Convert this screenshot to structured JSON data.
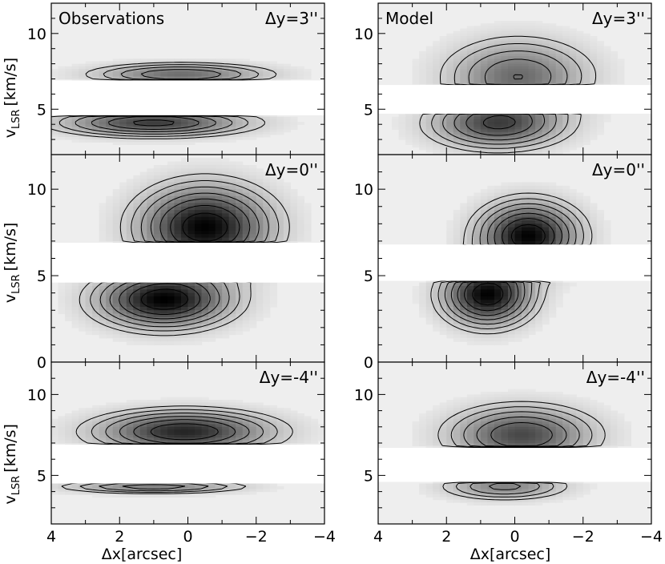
{
  "figure": {
    "xlabel": "Δx[arcsec]",
    "ylabel": "vLSR [km/s]",
    "ylabel_main": "v",
    "ylabel_sub": "LSR",
    "ylabel_unit": "[km/s]"
  },
  "chart_data": [
    {
      "type": "heatmap",
      "column": "Observations",
      "title": "Observations",
      "label": "Δy=3''",
      "xlim": [
        4,
        -4
      ],
      "ylim": [
        2,
        12
      ],
      "xticks": [
        4,
        2,
        0,
        -2,
        -4
      ],
      "yticks": [
        5,
        10
      ],
      "masked_vlsr": [
        4.6,
        6.9
      ],
      "components": [
        {
          "x": 0.2,
          "v": 7.3,
          "sx": 1.6,
          "sv": 0.45,
          "amp": 0.55
        },
        {
          "x": 1.0,
          "v": 4.1,
          "sx": 1.7,
          "sv": 0.55,
          "amp": 0.75
        }
      ]
    },
    {
      "type": "heatmap",
      "column": "Model",
      "title": "Model",
      "label": "Δy=3''",
      "xlim": [
        4,
        -4
      ],
      "ylim": [
        2,
        12
      ],
      "xticks": [
        4,
        2,
        0,
        -2,
        -4
      ],
      "yticks": [
        5,
        10
      ],
      "masked_vlsr": [
        4.7,
        6.6
      ],
      "components": [
        {
          "x": -0.1,
          "v": 7.2,
          "sx": 1.3,
          "sv": 1.5,
          "amp": 0.55
        },
        {
          "x": 0.5,
          "v": 4.0,
          "sx": 1.2,
          "sv": 1.0,
          "amp": 0.7
        }
      ]
    },
    {
      "type": "heatmap",
      "column": "Observations",
      "label": "Δy=0''",
      "xlim": [
        4,
        -4
      ],
      "ylim": [
        0,
        12
      ],
      "xticks": [
        4,
        2,
        0,
        -2,
        -4
      ],
      "yticks": [
        0,
        5,
        10
      ],
      "masked_vlsr": [
        4.6,
        6.9
      ],
      "components": [
        {
          "x": -0.5,
          "v": 7.8,
          "sx": 1.2,
          "sv": 1.5,
          "amp": 1.0
        },
        {
          "x": 0.7,
          "v": 3.6,
          "sx": 1.2,
          "sv": 1.0,
          "amp": 1.0
        }
      ]
    },
    {
      "type": "heatmap",
      "column": "Model",
      "label": "Δy=0''",
      "xlim": [
        4,
        -4
      ],
      "ylim": [
        0,
        12
      ],
      "xticks": [
        4,
        2,
        0,
        -2,
        -4
      ],
      "yticks": [
        0,
        5,
        10
      ],
      "masked_vlsr": [
        4.7,
        6.8
      ],
      "components": [
        {
          "x": -0.4,
          "v": 7.3,
          "sx": 0.9,
          "sv": 1.2,
          "amp": 1.0
        },
        {
          "x": 0.8,
          "v": 3.9,
          "sx": 0.8,
          "sv": 1.1,
          "amp": 1.0
        }
      ]
    },
    {
      "type": "heatmap",
      "column": "Observations",
      "label": "Δy=-4''",
      "xlim": [
        4,
        -4
      ],
      "ylim": [
        2,
        12
      ],
      "xticks": [
        4,
        2,
        0,
        -2,
        -4
      ],
      "yticks": [
        5,
        10
      ],
      "masked_vlsr": [
        4.5,
        6.9
      ],
      "components": [
        {
          "x": 0.1,
          "v": 7.7,
          "sx": 1.6,
          "sv": 0.8,
          "amp": 0.85
        },
        {
          "x": 1.0,
          "v": 4.3,
          "sx": 1.6,
          "sv": 0.25,
          "amp": 0.5
        }
      ]
    },
    {
      "type": "heatmap",
      "column": "Model",
      "label": "Δy=-4''",
      "xlim": [
        4,
        -4
      ],
      "ylim": [
        2,
        12
      ],
      "xticks": [
        4,
        2,
        0,
        -2,
        -4
      ],
      "yticks": [
        5,
        10
      ],
      "masked_vlsr": [
        4.6,
        6.7
      ],
      "components": [
        {
          "x": -0.2,
          "v": 7.5,
          "sx": 1.3,
          "sv": 1.1,
          "amp": 0.7
        },
        {
          "x": 0.3,
          "v": 4.3,
          "sx": 1.1,
          "sv": 0.5,
          "amp": 0.45
        }
      ]
    }
  ]
}
